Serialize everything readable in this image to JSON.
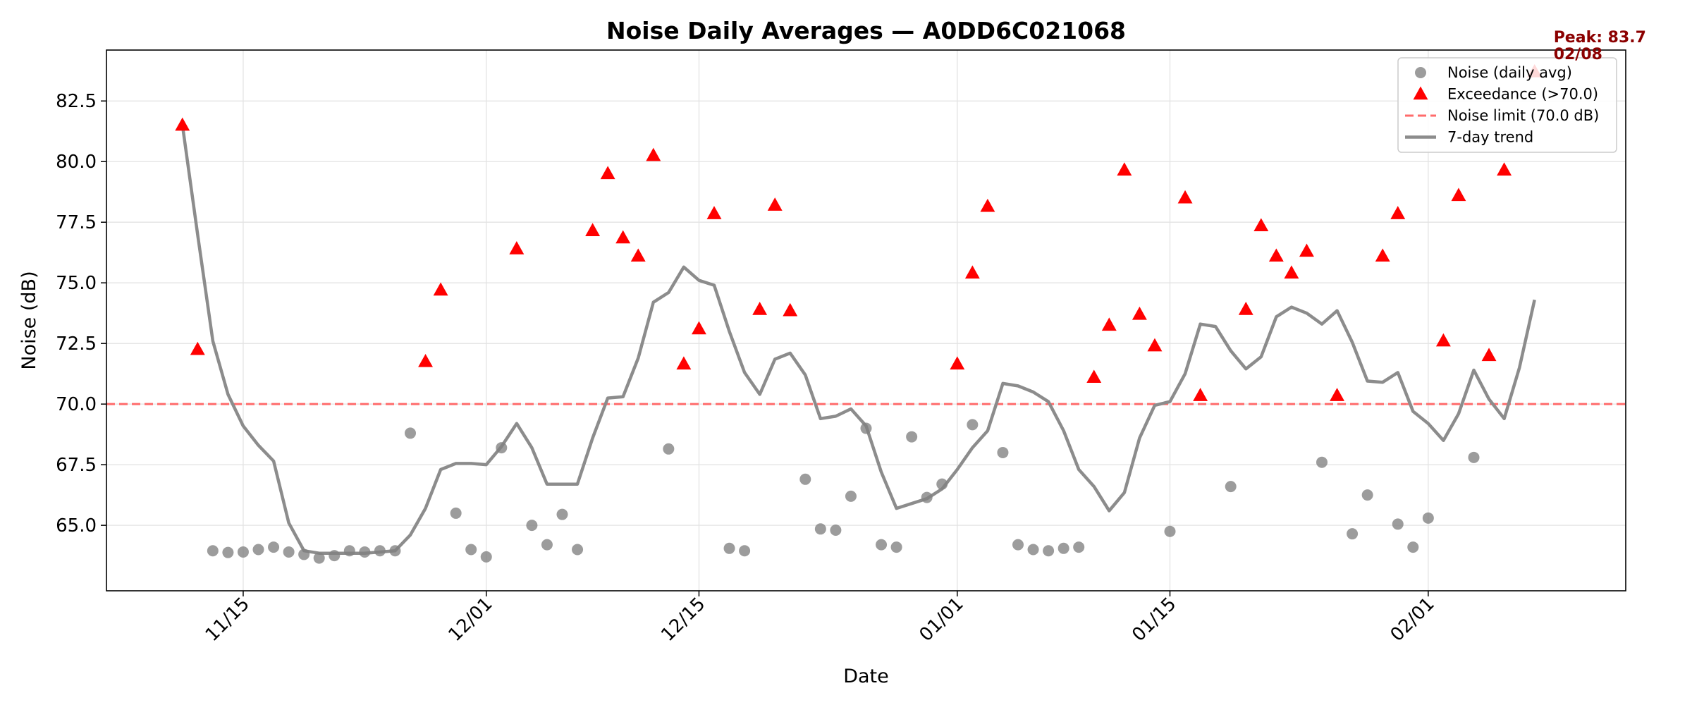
{
  "chart_data": {
    "type": "scatter",
    "title": "Noise Daily Averages — A0DD6C021068",
    "xlabel": "Date",
    "ylabel": "Noise (dB)",
    "xlim": [
      "2024-11-06",
      "2025-02-14"
    ],
    "ylim": [
      62.3,
      84.6
    ],
    "yticks": [
      65.0,
      67.5,
      70.0,
      72.5,
      75.0,
      77.5,
      80.0,
      82.5
    ],
    "ytick_labels": [
      "65.0",
      "67.5",
      "70.0",
      "72.5",
      "75.0",
      "77.5",
      "80.0",
      "82.5"
    ],
    "xticks": [
      "2024-11-15",
      "2024-12-01",
      "2024-12-15",
      "2025-01-01",
      "2025-01-15",
      "2025-02-01"
    ],
    "xtick_labels": [
      "11/15",
      "12/01",
      "12/15",
      "01/01",
      "01/15",
      "02/01"
    ],
    "grid": true,
    "legend_position": "top-right",
    "threshold": 70.0,
    "colors": {
      "noise": "#808080",
      "exceedance": "#ff0000",
      "limit": "#ff6b6b",
      "trend": "#8c8c8c",
      "peak": "#8b0000"
    },
    "series": [
      {
        "name": "Noise (daily avg)",
        "kind": "scatter",
        "marker": "circle",
        "points": [
          [
            "2024-11-13",
            63.95
          ],
          [
            "2024-11-14",
            63.88
          ],
          [
            "2024-11-15",
            63.9
          ],
          [
            "2024-11-16",
            64.0
          ],
          [
            "2024-11-17",
            64.1
          ],
          [
            "2024-11-18",
            63.9
          ],
          [
            "2024-11-19",
            63.8
          ],
          [
            "2024-11-20",
            63.65
          ],
          [
            "2024-11-21",
            63.75
          ],
          [
            "2024-11-22",
            63.95
          ],
          [
            "2024-11-23",
            63.9
          ],
          [
            "2024-11-24",
            63.95
          ],
          [
            "2024-11-25",
            63.95
          ],
          [
            "2024-11-26",
            68.8
          ],
          [
            "2024-11-29",
            65.5
          ],
          [
            "2024-11-30",
            64.0
          ],
          [
            "2024-12-01",
            63.7
          ],
          [
            "2024-12-02",
            68.2
          ],
          [
            "2024-12-04",
            65.0
          ],
          [
            "2024-12-05",
            64.2
          ],
          [
            "2024-12-06",
            65.45
          ],
          [
            "2024-12-07",
            64.0
          ],
          [
            "2024-12-13",
            68.15
          ],
          [
            "2024-12-17",
            64.05
          ],
          [
            "2024-12-18",
            63.95
          ],
          [
            "2024-12-22",
            66.9
          ],
          [
            "2024-12-23",
            64.85
          ],
          [
            "2024-12-24",
            64.8
          ],
          [
            "2024-12-25",
            66.2
          ],
          [
            "2024-12-26",
            69.0
          ],
          [
            "2024-12-27",
            64.2
          ],
          [
            "2024-12-28",
            64.1
          ],
          [
            "2024-12-29",
            68.65
          ],
          [
            "2024-12-30",
            66.15
          ],
          [
            "2024-12-31",
            66.7
          ],
          [
            "2025-01-02",
            69.15
          ],
          [
            "2025-01-04",
            68.0
          ],
          [
            "2025-01-05",
            64.2
          ],
          [
            "2025-01-06",
            64.0
          ],
          [
            "2025-01-07",
            63.95
          ],
          [
            "2025-01-08",
            64.05
          ],
          [
            "2025-01-09",
            64.1
          ],
          [
            "2025-01-15",
            64.75
          ],
          [
            "2025-01-19",
            66.6
          ],
          [
            "2025-01-25",
            67.6
          ],
          [
            "2025-01-27",
            64.65
          ],
          [
            "2025-01-28",
            66.25
          ],
          [
            "2025-01-30",
            65.05
          ],
          [
            "2025-01-31",
            64.1
          ],
          [
            "2025-02-01",
            65.3
          ],
          [
            "2025-02-04",
            67.8
          ]
        ]
      },
      {
        "name": "Exceedance (>70.0)",
        "kind": "scatter",
        "marker": "triangle",
        "points": [
          [
            "2024-11-11",
            81.5
          ],
          [
            "2024-11-12",
            72.25
          ],
          [
            "2024-11-27",
            71.75
          ],
          [
            "2024-11-28",
            74.7
          ],
          [
            "2024-12-03",
            76.4
          ],
          [
            "2024-12-08",
            77.15
          ],
          [
            "2024-12-09",
            79.5
          ],
          [
            "2024-12-10",
            76.85
          ],
          [
            "2024-12-11",
            76.1
          ],
          [
            "2024-12-12",
            80.25
          ],
          [
            "2024-12-14",
            71.65
          ],
          [
            "2024-12-15",
            73.1
          ],
          [
            "2024-12-16",
            77.85
          ],
          [
            "2024-12-19",
            73.9
          ],
          [
            "2024-12-20",
            78.2
          ],
          [
            "2024-12-21",
            73.85
          ],
          [
            "2025-01-01",
            71.65
          ],
          [
            "2025-01-02",
            75.4
          ],
          [
            "2025-01-03",
            78.15
          ],
          [
            "2025-01-10",
            71.1
          ],
          [
            "2025-01-11",
            73.25
          ],
          [
            "2025-01-12",
            79.65
          ],
          [
            "2025-01-13",
            73.7
          ],
          [
            "2025-01-14",
            72.4
          ],
          [
            "2025-01-16",
            78.5
          ],
          [
            "2025-01-17",
            70.35
          ],
          [
            "2025-01-20",
            73.9
          ],
          [
            "2025-01-21",
            77.35
          ],
          [
            "2025-01-22",
            76.1
          ],
          [
            "2025-01-23",
            75.4
          ],
          [
            "2025-01-24",
            76.3
          ],
          [
            "2025-01-26",
            70.35
          ],
          [
            "2025-01-29",
            76.1
          ],
          [
            "2025-01-30",
            77.85
          ],
          [
            "2025-02-02",
            72.6
          ],
          [
            "2025-02-03",
            78.6
          ],
          [
            "2025-02-05",
            72.0
          ],
          [
            "2025-02-06",
            79.65
          ],
          [
            "2025-02-08",
            83.7
          ]
        ]
      },
      {
        "name": "Noise limit (70.0 dB)",
        "kind": "hline",
        "y": 70.0
      },
      {
        "name": "7-day trend",
        "kind": "line",
        "points": [
          [
            "2024-11-11",
            81.5
          ],
          [
            "2024-11-12",
            77.0
          ],
          [
            "2024-11-13",
            72.6
          ],
          [
            "2024-11-14",
            70.4
          ],
          [
            "2024-11-15",
            69.1
          ],
          [
            "2024-11-16",
            68.3
          ],
          [
            "2024-11-17",
            67.65
          ],
          [
            "2024-11-18",
            65.1
          ],
          [
            "2024-11-19",
            63.95
          ],
          [
            "2024-11-20",
            63.85
          ],
          [
            "2024-11-21",
            63.85
          ],
          [
            "2024-11-22",
            63.85
          ],
          [
            "2024-11-23",
            63.85
          ],
          [
            "2024-11-24",
            63.9
          ],
          [
            "2024-11-25",
            63.95
          ],
          [
            "2024-11-26",
            64.6
          ],
          [
            "2024-11-27",
            65.7
          ],
          [
            "2024-11-28",
            67.3
          ],
          [
            "2024-11-29",
            67.55
          ],
          [
            "2024-11-30",
            67.55
          ],
          [
            "2024-12-01",
            67.5
          ],
          [
            "2024-12-02",
            68.25
          ],
          [
            "2024-12-03",
            69.2
          ],
          [
            "2024-12-04",
            68.2
          ],
          [
            "2024-12-05",
            66.7
          ],
          [
            "2024-12-06",
            66.7
          ],
          [
            "2024-12-07",
            66.7
          ],
          [
            "2024-12-08",
            68.6
          ],
          [
            "2024-12-09",
            70.25
          ],
          [
            "2024-12-10",
            70.3
          ],
          [
            "2024-12-11",
            71.9
          ],
          [
            "2024-12-12",
            74.2
          ],
          [
            "2024-12-13",
            74.6
          ],
          [
            "2024-12-14",
            75.65
          ],
          [
            "2024-12-15",
            75.1
          ],
          [
            "2024-12-16",
            74.9
          ],
          [
            "2024-12-17",
            73.0
          ],
          [
            "2024-12-18",
            71.3
          ],
          [
            "2024-12-19",
            70.4
          ],
          [
            "2024-12-20",
            71.85
          ],
          [
            "2024-12-21",
            72.1
          ],
          [
            "2024-12-22",
            71.2
          ],
          [
            "2024-12-23",
            69.4
          ],
          [
            "2024-12-24",
            69.5
          ],
          [
            "2024-12-25",
            69.8
          ],
          [
            "2024-12-26",
            69.1
          ],
          [
            "2024-12-27",
            67.2
          ],
          [
            "2024-12-28",
            65.7
          ],
          [
            "2024-12-29",
            65.9
          ],
          [
            "2024-12-30",
            66.1
          ],
          [
            "2024-12-31",
            66.5
          ],
          [
            "2025-01-01",
            67.3
          ],
          [
            "2025-01-02",
            68.2
          ],
          [
            "2025-01-03",
            68.9
          ],
          [
            "2025-01-04",
            70.85
          ],
          [
            "2025-01-05",
            70.75
          ],
          [
            "2025-01-06",
            70.5
          ],
          [
            "2025-01-07",
            70.1
          ],
          [
            "2025-01-08",
            68.9
          ],
          [
            "2025-01-09",
            67.3
          ],
          [
            "2025-01-10",
            66.6
          ],
          [
            "2025-01-11",
            65.6
          ],
          [
            "2025-01-12",
            66.35
          ],
          [
            "2025-01-13",
            68.6
          ],
          [
            "2025-01-14",
            69.95
          ],
          [
            "2025-01-15",
            70.1
          ],
          [
            "2025-01-16",
            71.25
          ],
          [
            "2025-01-17",
            73.3
          ],
          [
            "2025-01-18",
            73.2
          ],
          [
            "2025-01-19",
            72.2
          ],
          [
            "2025-01-20",
            71.45
          ],
          [
            "2025-01-21",
            71.95
          ],
          [
            "2025-01-22",
            73.6
          ],
          [
            "2025-01-23",
            74.0
          ],
          [
            "2025-01-24",
            73.75
          ],
          [
            "2025-01-25",
            73.3
          ],
          [
            "2025-01-26",
            73.85
          ],
          [
            "2025-01-27",
            72.55
          ],
          [
            "2025-01-28",
            70.95
          ],
          [
            "2025-01-29",
            70.9
          ],
          [
            "2025-01-30",
            71.3
          ],
          [
            "2025-01-31",
            69.7
          ],
          [
            "2025-02-01",
            69.2
          ],
          [
            "2025-02-02",
            68.5
          ],
          [
            "2025-02-03",
            69.6
          ],
          [
            "2025-02-04",
            71.4
          ],
          [
            "2025-02-05",
            70.2
          ],
          [
            "2025-02-06",
            69.4
          ],
          [
            "2025-02-07",
            71.5
          ],
          [
            "2025-02-08",
            74.3
          ]
        ]
      }
    ],
    "annotations": [
      {
        "text_line1": "Peak: 83.7",
        "text_line2": "02/08",
        "x": "2025-02-08",
        "y": 83.7
      }
    ]
  }
}
